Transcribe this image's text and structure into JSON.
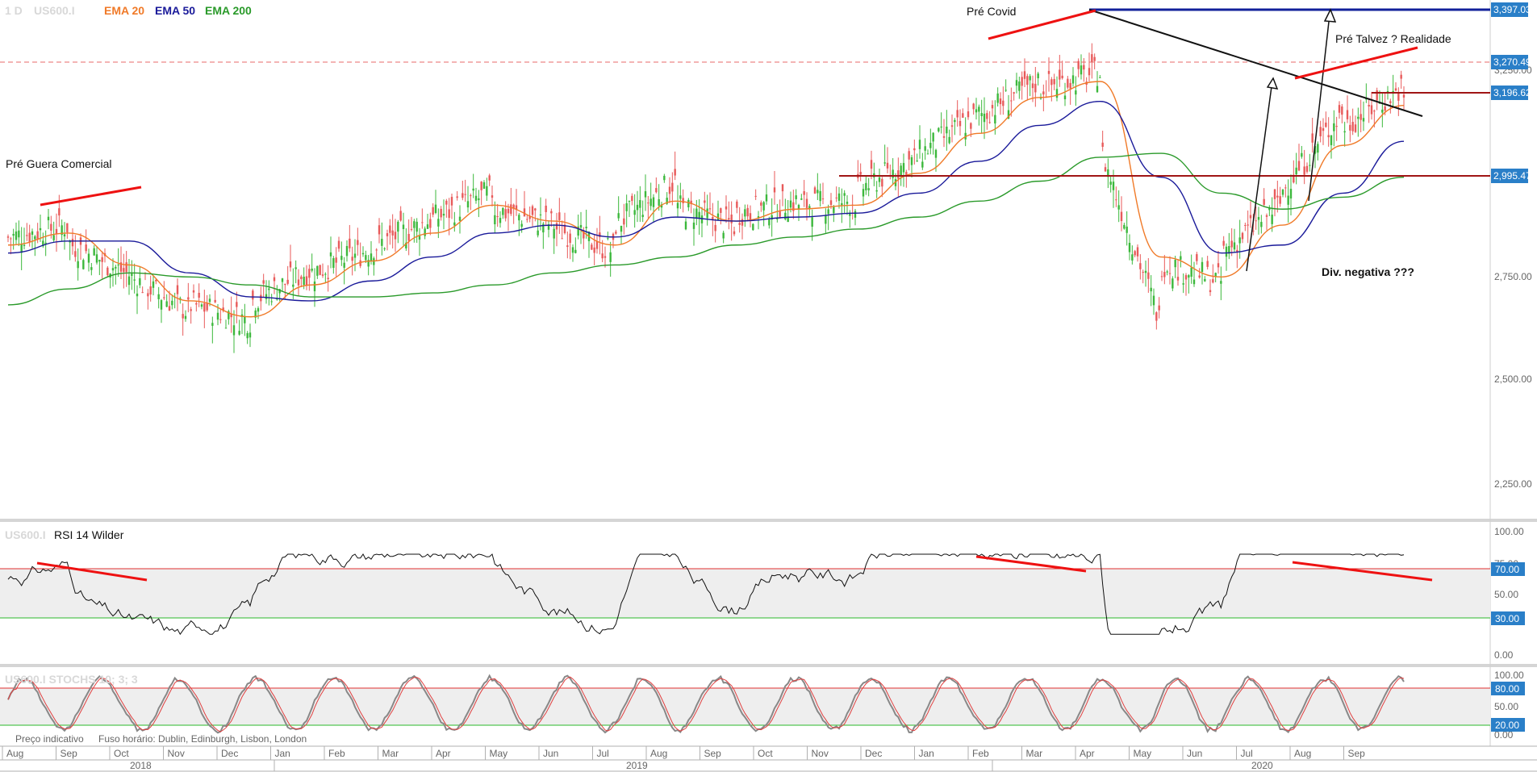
{
  "header": {
    "interval": "1 D",
    "symbol": "US600.I",
    "ema20_label": "EMA 20",
    "ema50_label": "EMA 50",
    "ema200_label": "EMA 200"
  },
  "colors": {
    "ema20": "#f07a28",
    "ema50": "#1a1a9a",
    "ema200": "#2a9a2a",
    "price_up": "#3cb83c",
    "price_down": "#e85a5a",
    "annotation_red": "#ee1111",
    "resistance_blue": "#11209a",
    "level_darkred": "#a01515",
    "tag_blue": "#2a7fc8"
  },
  "annotations": {
    "pre_trade_war": "Pré Guera Comercial",
    "pre_covid": "Pré Covid",
    "pre_maybe_reality": "Pré Talvez ? Realidade",
    "negative_divergence": "Div. negativa ???"
  },
  "price_panel": {
    "y_ticks": [
      "2,250.00",
      "2,500.00",
      "2,750.00",
      "3,250.00"
    ],
    "level_tags": [
      "3,397.03",
      "3,270.49",
      "3,196.62",
      "2,995.47"
    ]
  },
  "rsi_panel": {
    "symbol": "US600.I",
    "title": "RSI 14 Wilder",
    "y_ticks": [
      "100.00",
      "75.00",
      "50.00",
      "0.00"
    ],
    "level_tags": [
      "70.00",
      "30.00"
    ]
  },
  "stoch_panel": {
    "title": "US600.I STOCHS 10; 3; 3",
    "y_ticks": [
      "100.00",
      "50.00",
      "0.00"
    ],
    "level_tags": [
      "80.00",
      "20.00"
    ]
  },
  "footer": {
    "indicative_price": "Preço indicativo",
    "timezone": "Fuso horário: Dublin, Edinburgh, Lisbon, London",
    "months": [
      "Aug",
      "Sep",
      "Oct",
      "Nov",
      "Dec",
      "Jan",
      "Feb",
      "Mar",
      "Apr",
      "May",
      "Jun",
      "Jul",
      "Aug",
      "Sep",
      "Oct",
      "Nov",
      "Dec",
      "Jan",
      "Feb",
      "Mar",
      "Apr",
      "May",
      "Jun",
      "Jul",
      "Aug",
      "Sep"
    ],
    "years": [
      "2018",
      "2019",
      "2020"
    ]
  },
  "chart_data": {
    "type": "line",
    "title": "",
    "y_range": [
      2150,
      3420
    ],
    "x": [
      "Aug 2018",
      "Sep 2018",
      "Oct 2018",
      "Nov 2018",
      "Dec 2018",
      "Jan 2019",
      "Feb 2019",
      "Mar 2019",
      "Apr 2019",
      "May 2019",
      "Jun 2019",
      "Jul 2019",
      "Aug 2019",
      "Sep 2019",
      "Oct 2019",
      "Nov 2019",
      "Dec 2019",
      "Jan 2020",
      "Feb 2020",
      "Mar 2020",
      "Apr 2020",
      "May 2020",
      "Jun 2020",
      "Jul 2020"
    ],
    "series": [
      {
        "name": "EMA 20",
        "values": [
          2830,
          2860,
          2780,
          2690,
          2650,
          2730,
          2790,
          2860,
          2930,
          2890,
          2830,
          2940,
          2890,
          2920,
          2930,
          3010,
          3110,
          3200,
          3240,
          2800,
          2750,
          2880,
          3080,
          3180
        ]
      },
      {
        "name": "EMA 50",
        "values": [
          2810,
          2840,
          2840,
          2760,
          2700,
          2690,
          2740,
          2800,
          2860,
          2880,
          2850,
          2900,
          2890,
          2900,
          2910,
          2960,
          3040,
          3130,
          3190,
          3000,
          2810,
          2830,
          2960,
          3090
        ]
      },
      {
        "name": "EMA 200",
        "values": [
          2680,
          2720,
          2760,
          2750,
          2730,
          2700,
          2700,
          2710,
          2730,
          2760,
          2780,
          2800,
          2830,
          2850,
          2870,
          2900,
          2940,
          2990,
          3050,
          3060,
          2960,
          2920,
          2950,
          3000
        ]
      }
    ],
    "levels": [
      3397.03,
      3270.49,
      3196.62,
      2995.47
    ]
  }
}
